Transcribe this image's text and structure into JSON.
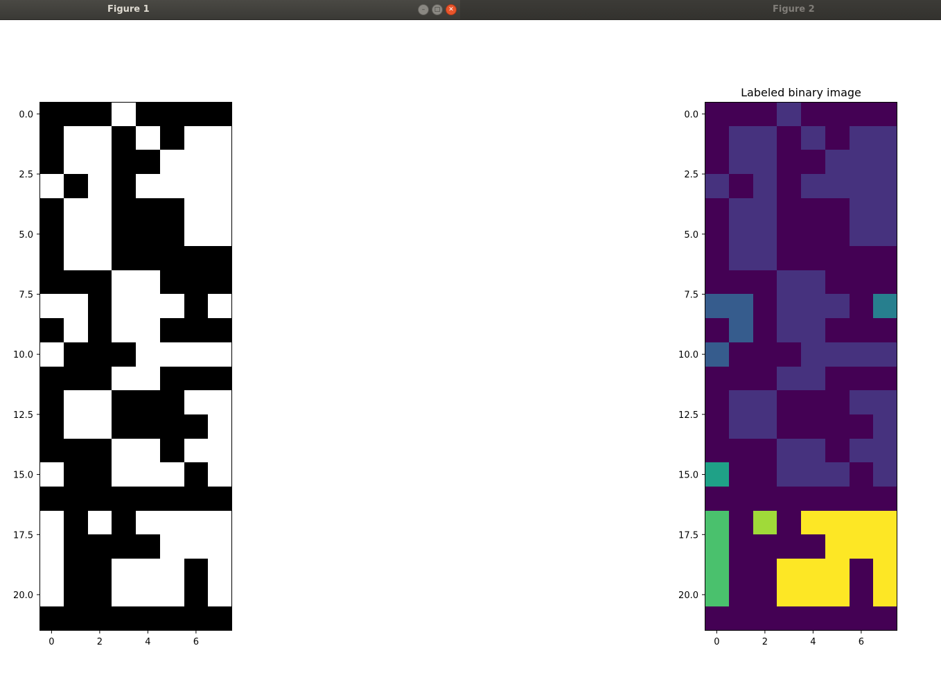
{
  "windows": [
    {
      "title": "Figure 1",
      "active": true
    },
    {
      "title": "Figure 2",
      "active": false
    }
  ],
  "chart_data": [
    {
      "type": "heatmap",
      "title": "",
      "colormap": "gray",
      "rows": 22,
      "cols": 8,
      "x_ticks": [
        0,
        2,
        4,
        6
      ],
      "x_tick_labels": [
        "0",
        "2",
        "4",
        "6"
      ],
      "y_ticks": [
        0,
        2.5,
        5,
        7.5,
        10,
        12.5,
        15,
        17.5,
        20
      ],
      "y_tick_labels": [
        "0.0",
        "2.5",
        "5.0",
        "7.5",
        "10.0",
        "12.5",
        "15.0",
        "17.5",
        "20.0"
      ],
      "xlim": [
        -0.5,
        7.5
      ],
      "ylim": [
        21.5,
        -0.5
      ],
      "values": [
        [
          0,
          0,
          0,
          1,
          0,
          0,
          0,
          0
        ],
        [
          0,
          1,
          1,
          0,
          1,
          0,
          1,
          1
        ],
        [
          0,
          1,
          1,
          0,
          0,
          1,
          1,
          1
        ],
        [
          1,
          0,
          1,
          0,
          1,
          1,
          1,
          1
        ],
        [
          0,
          1,
          1,
          0,
          0,
          0,
          1,
          1
        ],
        [
          0,
          1,
          1,
          0,
          0,
          0,
          1,
          1
        ],
        [
          0,
          1,
          1,
          0,
          0,
          0,
          0,
          0
        ],
        [
          0,
          0,
          0,
          1,
          1,
          0,
          0,
          0
        ],
        [
          1,
          1,
          0,
          1,
          1,
          1,
          0,
          1
        ],
        [
          0,
          1,
          0,
          1,
          1,
          0,
          0,
          0
        ],
        [
          1,
          0,
          0,
          0,
          1,
          1,
          1,
          1
        ],
        [
          0,
          0,
          0,
          1,
          1,
          0,
          0,
          0
        ],
        [
          0,
          1,
          1,
          0,
          0,
          0,
          1,
          1
        ],
        [
          0,
          1,
          1,
          0,
          0,
          0,
          0,
          1
        ],
        [
          0,
          0,
          0,
          1,
          1,
          0,
          1,
          1
        ],
        [
          1,
          0,
          0,
          1,
          1,
          1,
          0,
          1
        ],
        [
          0,
          0,
          0,
          0,
          0,
          0,
          0,
          0
        ],
        [
          1,
          0,
          1,
          0,
          1,
          1,
          1,
          1
        ],
        [
          1,
          0,
          0,
          0,
          0,
          1,
          1,
          1
        ],
        [
          1,
          0,
          0,
          1,
          1,
          1,
          0,
          1
        ],
        [
          1,
          0,
          0,
          1,
          1,
          1,
          0,
          1
        ],
        [
          0,
          0,
          0,
          0,
          0,
          0,
          0,
          0
        ]
      ]
    },
    {
      "type": "heatmap",
      "title": "Labeled binary image",
      "colormap": "viridis",
      "label_colors": [
        "#440154",
        "#46327e",
        "#365c8d",
        "#277f8e",
        "#1fa187",
        "#4ac16d",
        "#a0da39",
        "#fde725"
      ],
      "rows": 22,
      "cols": 8,
      "x_ticks": [
        0,
        2,
        4,
        6
      ],
      "x_tick_labels": [
        "0",
        "2",
        "4",
        "6"
      ],
      "y_ticks": [
        0,
        2.5,
        5,
        7.5,
        10,
        12.5,
        15,
        17.5,
        20
      ],
      "y_tick_labels": [
        "0.0",
        "2.5",
        "5.0",
        "7.5",
        "10.0",
        "12.5",
        "15.0",
        "17.5",
        "20.0"
      ],
      "xlim": [
        -0.5,
        7.5
      ],
      "ylim": [
        21.5,
        -0.5
      ],
      "values": [
        [
          0,
          0,
          0,
          1,
          0,
          0,
          0,
          0
        ],
        [
          0,
          1,
          1,
          0,
          1,
          0,
          1,
          1
        ],
        [
          0,
          1,
          1,
          0,
          0,
          1,
          1,
          1
        ],
        [
          1,
          0,
          1,
          0,
          1,
          1,
          1,
          1
        ],
        [
          0,
          1,
          1,
          0,
          0,
          0,
          1,
          1
        ],
        [
          0,
          1,
          1,
          0,
          0,
          0,
          1,
          1
        ],
        [
          0,
          1,
          1,
          0,
          0,
          0,
          0,
          0
        ],
        [
          0,
          0,
          0,
          1,
          1,
          0,
          0,
          0
        ],
        [
          2,
          2,
          0,
          1,
          1,
          1,
          0,
          3
        ],
        [
          0,
          2,
          0,
          1,
          1,
          0,
          0,
          0
        ],
        [
          2,
          0,
          0,
          0,
          1,
          1,
          1,
          1
        ],
        [
          0,
          0,
          0,
          1,
          1,
          0,
          0,
          0
        ],
        [
          0,
          1,
          1,
          0,
          0,
          0,
          1,
          1
        ],
        [
          0,
          1,
          1,
          0,
          0,
          0,
          0,
          1
        ],
        [
          0,
          0,
          0,
          1,
          1,
          0,
          1,
          1
        ],
        [
          4,
          0,
          0,
          1,
          1,
          1,
          0,
          1
        ],
        [
          0,
          0,
          0,
          0,
          0,
          0,
          0,
          0
        ],
        [
          5,
          0,
          6,
          0,
          7,
          7,
          7,
          7
        ],
        [
          5,
          0,
          0,
          0,
          0,
          7,
          7,
          7
        ],
        [
          5,
          0,
          0,
          7,
          7,
          7,
          0,
          7
        ],
        [
          5,
          0,
          0,
          7,
          7,
          7,
          0,
          7
        ],
        [
          0,
          0,
          0,
          0,
          0,
          0,
          0,
          0
        ]
      ]
    }
  ]
}
